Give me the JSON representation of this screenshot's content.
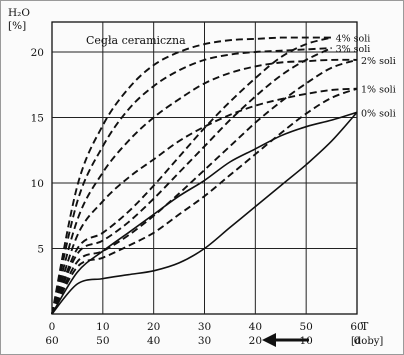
{
  "chart_data": {
    "type": "line",
    "title": "Cegła ceramiczna",
    "ylabel_top": "H₂O",
    "ylabel_unit": "[%]",
    "xlabel": "T",
    "xlabel_unit": "[doby]",
    "xlim": [
      0,
      60
    ],
    "ylim": [
      0,
      20
    ],
    "x_ticks": [
      "0",
      "10",
      "20",
      "30",
      "40",
      "50",
      "60"
    ],
    "x_ticks_reverse": [
      "60",
      "50",
      "40",
      "30",
      "20",
      "10",
      "0"
    ],
    "y_ticks": [
      "5",
      "10",
      "15",
      "20"
    ],
    "grid": true,
    "series": [
      {
        "name": "0% soli",
        "style": "solid",
        "wetting": [
          [
            0,
            0
          ],
          [
            5,
            3.2
          ],
          [
            10,
            4.8
          ],
          [
            15,
            6.2
          ],
          [
            20,
            7.6
          ],
          [
            25,
            9.0
          ],
          [
            30,
            10.2
          ],
          [
            35,
            11.6
          ],
          [
            40,
            12.6
          ],
          [
            45,
            13.6
          ],
          [
            50,
            14.3
          ],
          [
            55,
            14.8
          ],
          [
            60,
            15.4
          ]
        ],
        "drying": [
          [
            0,
            0
          ],
          [
            5,
            2.3
          ],
          [
            10,
            2.7
          ],
          [
            15,
            3.0
          ],
          [
            20,
            3.3
          ],
          [
            25,
            3.9
          ],
          [
            30,
            5.0
          ],
          [
            35,
            6.6
          ],
          [
            40,
            8.2
          ],
          [
            45,
            9.8
          ],
          [
            50,
            11.4
          ],
          [
            55,
            13.2
          ],
          [
            60,
            15.4
          ]
        ]
      },
      {
        "name": "1% soli",
        "style": "dashed",
        "wetting": [
          [
            0,
            0
          ],
          [
            5,
            6.0
          ],
          [
            10,
            8.6
          ],
          [
            15,
            10.4
          ],
          [
            20,
            11.8
          ],
          [
            25,
            13.2
          ],
          [
            30,
            14.3
          ],
          [
            35,
            15.2
          ],
          [
            40,
            15.9
          ],
          [
            45,
            16.4
          ],
          [
            50,
            16.8
          ],
          [
            55,
            17.1
          ],
          [
            60,
            17.2
          ]
        ],
        "drying": [
          [
            0,
            0
          ],
          [
            5,
            3.6
          ],
          [
            10,
            4.3
          ],
          [
            15,
            5.2
          ],
          [
            20,
            6.2
          ],
          [
            25,
            7.6
          ],
          [
            30,
            9.0
          ],
          [
            35,
            10.6
          ],
          [
            40,
            12.2
          ],
          [
            45,
            13.8
          ],
          [
            50,
            15.3
          ],
          [
            55,
            16.5
          ],
          [
            60,
            17.2
          ]
        ]
      },
      {
        "name": "2% soli",
        "style": "dashed",
        "wetting": [
          [
            0,
            0
          ],
          [
            5,
            7.2
          ],
          [
            10,
            10.8
          ],
          [
            15,
            13.2
          ],
          [
            20,
            15.0
          ],
          [
            25,
            16.4
          ],
          [
            30,
            17.6
          ],
          [
            35,
            18.4
          ],
          [
            40,
            18.9
          ],
          [
            45,
            19.2
          ],
          [
            50,
            19.3
          ],
          [
            55,
            19.4
          ],
          [
            60,
            19.4
          ]
        ],
        "drying": [
          [
            0,
            0
          ],
          [
            5,
            4.0
          ],
          [
            10,
            4.8
          ],
          [
            15,
            6.0
          ],
          [
            20,
            7.5
          ],
          [
            25,
            9.2
          ],
          [
            30,
            11.0
          ],
          [
            35,
            12.8
          ],
          [
            40,
            14.6
          ],
          [
            45,
            16.2
          ],
          [
            50,
            17.6
          ],
          [
            55,
            18.8
          ],
          [
            60,
            19.4
          ]
        ]
      },
      {
        "name": "3% soli",
        "style": "dashed",
        "wetting": [
          [
            0,
            0
          ],
          [
            5,
            8.6
          ],
          [
            10,
            12.8
          ],
          [
            15,
            15.6
          ],
          [
            20,
            17.4
          ],
          [
            25,
            18.6
          ],
          [
            30,
            19.4
          ],
          [
            35,
            19.8
          ],
          [
            40,
            20.0
          ],
          [
            45,
            20.1
          ],
          [
            50,
            20.2
          ],
          [
            55,
            20.3
          ]
        ],
        "drying": [
          [
            0,
            0
          ],
          [
            5,
            4.6
          ],
          [
            10,
            5.6
          ],
          [
            15,
            7.0
          ],
          [
            20,
            8.8
          ],
          [
            25,
            10.8
          ],
          [
            30,
            12.8
          ],
          [
            35,
            14.8
          ],
          [
            40,
            16.6
          ],
          [
            45,
            18.2
          ],
          [
            50,
            19.4
          ],
          [
            55,
            20.3
          ]
        ]
      },
      {
        "name": "4% soli",
        "style": "dashed",
        "wetting": [
          [
            0,
            0
          ],
          [
            5,
            9.8
          ],
          [
            10,
            14.4
          ],
          [
            15,
            17.2
          ],
          [
            20,
            19.0
          ],
          [
            25,
            20.0
          ],
          [
            30,
            20.6
          ],
          [
            35,
            20.9
          ],
          [
            40,
            21.0
          ],
          [
            45,
            21.1
          ],
          [
            50,
            21.1
          ],
          [
            55,
            21.1
          ]
        ],
        "drying": [
          [
            0,
            0
          ],
          [
            5,
            5.0
          ],
          [
            10,
            6.2
          ],
          [
            15,
            7.8
          ],
          [
            20,
            9.8
          ],
          [
            25,
            12.0
          ],
          [
            30,
            14.2
          ],
          [
            35,
            16.2
          ],
          [
            40,
            18.0
          ],
          [
            45,
            19.6
          ],
          [
            50,
            20.6
          ],
          [
            55,
            21.1
          ]
        ]
      }
    ]
  }
}
